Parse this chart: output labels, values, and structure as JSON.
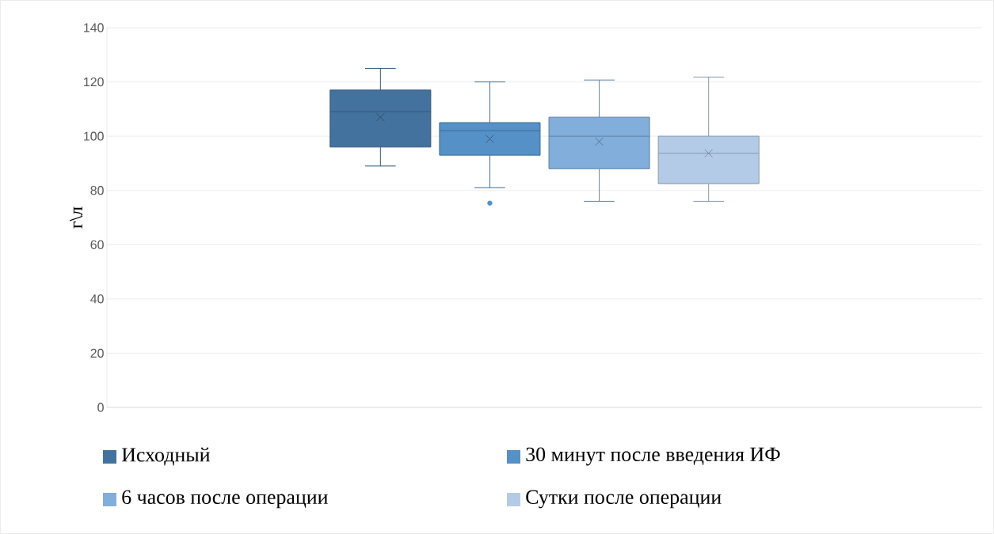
{
  "chart_data": {
    "type": "box",
    "ylabel": "г\\л",
    "categories": [
      null
    ],
    "ylim": [
      0,
      140
    ],
    "yticks": [
      0,
      20,
      40,
      60,
      80,
      100,
      120,
      140
    ],
    "grid": "y",
    "legend": "bottom",
    "series": [
      {
        "name": "Исходный",
        "color": "#44729e",
        "boxes": [
          {
            "low": 89,
            "q1": 96,
            "median": 109,
            "q3": 117,
            "high": 125,
            "mean": 107
          }
        ]
      },
      {
        "name": "30 минут после введения ИФ",
        "color": "#5590c6",
        "boxes": [
          {
            "low": 81,
            "q1": 93,
            "median": 102,
            "q3": 105,
            "high": 120,
            "mean": 99,
            "outliers": [
              75.3
            ]
          }
        ]
      },
      {
        "name": "6 часов после операции",
        "color": "#82aedb",
        "boxes": [
          {
            "low": 76,
            "q1": 88,
            "median": 100,
            "q3": 107,
            "high": 120.7,
            "mean": 98
          }
        ]
      },
      {
        "name": "Сутки после операции",
        "color": "#b4cbe7",
        "boxes": [
          {
            "low": 76,
            "q1": 82.5,
            "median": 93.7,
            "q3": 100,
            "high": 121.8,
            "mean": 93.7
          }
        ]
      }
    ]
  }
}
